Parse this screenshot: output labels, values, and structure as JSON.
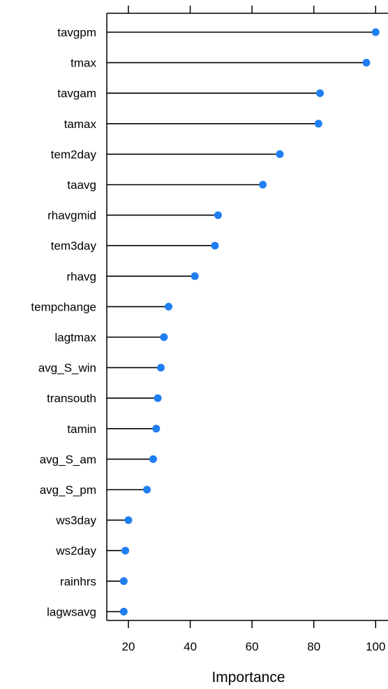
{
  "chart_data": {
    "type": "scatter",
    "style": "lollipop (dot plot with segments from axis)",
    "xlabel": "Importance",
    "ylabel": "",
    "xlim": [
      13,
      104
    ],
    "xticks": [
      "20",
      "40",
      "60",
      "80",
      "100"
    ],
    "grid": false,
    "legend": "none",
    "series": [
      {
        "color": "#1f7ff2",
        "points": [
          {
            "label": "tavgpm",
            "value": 100
          },
          {
            "label": "tmax",
            "value": 97
          },
          {
            "label": "tavgam",
            "value": 82
          },
          {
            "label": "tamax",
            "value": 81.5
          },
          {
            "label": "tem2day",
            "value": 69
          },
          {
            "label": "taavg",
            "value": 63.5
          },
          {
            "label": "rhavgmid",
            "value": 49
          },
          {
            "label": "tem3day",
            "value": 48
          },
          {
            "label": "rhavg",
            "value": 41.5
          },
          {
            "label": "tempchange",
            "value": 33
          },
          {
            "label": "lagtmax",
            "value": 31.5
          },
          {
            "label": "avg_S_win",
            "value": 30.5
          },
          {
            "label": "transouth",
            "value": 29.5
          },
          {
            "label": "tamin",
            "value": 29
          },
          {
            "label": "avg_S_am",
            "value": 28
          },
          {
            "label": "avg_S_pm",
            "value": 26
          },
          {
            "label": "ws3day",
            "value": 20
          },
          {
            "label": "ws2day",
            "value": 19
          },
          {
            "label": "rainhrs",
            "value": 18.5
          },
          {
            "label": "lagwsavg",
            "value": 18.5
          }
        ]
      }
    ]
  }
}
